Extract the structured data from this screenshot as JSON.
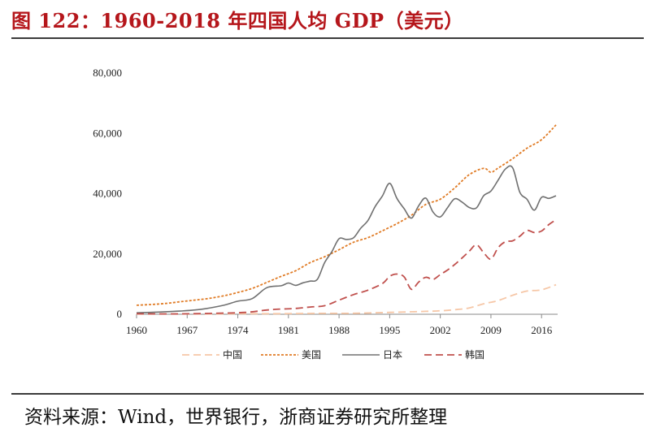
{
  "figure": {
    "title": "图 122：1960-2018 年四国人均 GDP（美元）",
    "source": "资料来源：Wind，世界银行，浙商证券研究所整理"
  },
  "chart_data": {
    "type": "line",
    "title": "1960-2018 年四国人均 GDP（美元）",
    "xlabel": "",
    "ylabel": "",
    "xlim": [
      1960,
      2018
    ],
    "ylim": [
      0,
      80000
    ],
    "x_ticks": [
      1960,
      1967,
      1974,
      1981,
      1988,
      1995,
      2002,
      2009,
      2016
    ],
    "y_ticks": [
      0,
      20000,
      40000,
      60000,
      80000
    ],
    "y_tick_labels": [
      "0",
      "20,000",
      "40,000",
      "60,000",
      "80,000"
    ],
    "grid": false,
    "legend_position": "bottom",
    "series": [
      {
        "name": "中国",
        "color": "#f6c7a7",
        "dash": "dash",
        "x": [
          1960,
          1965,
          1970,
          1975,
          1980,
          1985,
          1990,
          1995,
          2000,
          2002,
          2004,
          2006,
          2008,
          2010,
          2012,
          2014,
          2016,
          2018
        ],
        "y": [
          90,
          100,
          110,
          180,
          200,
          290,
          320,
          610,
          960,
          1150,
          1510,
          2100,
          3470,
          4550,
          6300,
          7700,
          8100,
          9800
        ]
      },
      {
        "name": "美国",
        "color": "#e07b25",
        "dash": "dot",
        "x": [
          1960,
          1962,
          1964,
          1966,
          1968,
          1970,
          1972,
          1974,
          1976,
          1978,
          1980,
          1982,
          1984,
          1986,
          1988,
          1990,
          1992,
          1994,
          1996,
          1998,
          2000,
          2002,
          2004,
          2006,
          2008,
          2009,
          2010,
          2012,
          2014,
          2016,
          2018
        ],
        "y": [
          3000,
          3240,
          3570,
          4150,
          4690,
          5250,
          6090,
          7240,
          8590,
          10560,
          12580,
          14430,
          17120,
          19070,
          21420,
          23890,
          25420,
          27690,
          30070,
          32850,
          36450,
          38170,
          41920,
          46300,
          48400,
          47100,
          48500,
          51600,
          55100,
          57900,
          62800
        ]
      },
      {
        "name": "日本",
        "color": "#707070",
        "dash": "solid",
        "x": [
          1960,
          1963,
          1966,
          1969,
          1972,
          1974,
          1976,
          1978,
          1980,
          1981,
          1982,
          1983,
          1984,
          1985,
          1986,
          1987,
          1988,
          1989,
          1990,
          1991,
          1992,
          1993,
          1994,
          1995,
          1996,
          1997,
          1998,
          1999,
          2000,
          2001,
          2002,
          2003,
          2004,
          2005,
          2006,
          2007,
          2008,
          2009,
          2010,
          2011,
          2012,
          2013,
          2014,
          2015,
          2016,
          2017,
          2018
        ],
        "y": [
          480,
          730,
          1060,
          1670,
          2970,
          4350,
          5200,
          8820,
          9460,
          10360,
          9580,
          10420,
          10980,
          11580,
          17110,
          20750,
          25050,
          24820,
          25360,
          28540,
          31150,
          35770,
          39270,
          43440,
          38440,
          35020,
          31900,
          35960,
          38530,
          33850,
          32290,
          35380,
          38300,
          37220,
          35430,
          35280,
          39340,
          40860,
          44510,
          48170,
          48600,
          40450,
          38110,
          34520,
          38790,
          38430,
          39300
        ]
      },
      {
        "name": "韩国",
        "color": "#c0504d",
        "dash": "dash",
        "x": [
          1960,
          1965,
          1970,
          1975,
          1978,
          1980,
          1982,
          1984,
          1986,
          1988,
          1990,
          1992,
          1994,
          1995,
          1996,
          1997,
          1998,
          1999,
          2000,
          2001,
          2002,
          2003,
          2004,
          2005,
          2006,
          2007,
          2008,
          2009,
          2010,
          2011,
          2012,
          2013,
          2014,
          2015,
          2016,
          2017,
          2018
        ],
        "y": [
          160,
          110,
          280,
          620,
          1400,
          1720,
          1930,
          2410,
          2830,
          4690,
          6510,
          8000,
          10200,
          12570,
          13340,
          12400,
          8280,
          10670,
          12260,
          11560,
          13170,
          14670,
          16500,
          18640,
          20890,
          23060,
          20430,
          18290,
          22090,
          24080,
          24360,
          25890,
          27810,
          27110,
          27610,
          29740,
          31360
        ]
      }
    ]
  }
}
